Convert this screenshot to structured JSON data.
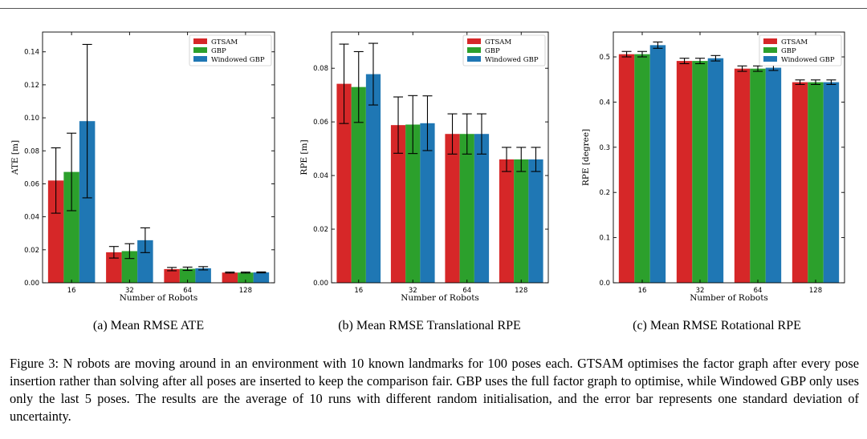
{
  "colors": {
    "GTSAM": "#d62728",
    "GBP": "#2ca02c",
    "Windowed GBP": "#1f77b4",
    "errorbar": "#000000",
    "axis": "#000000"
  },
  "chart_data": [
    {
      "type": "bar",
      "categories": [
        "16",
        "32",
        "64",
        "128"
      ],
      "series": [
        {
          "name": "GTSAM",
          "values": [
            0.062,
            0.0185,
            0.0083,
            0.0062
          ],
          "err": [
            0.0198,
            0.0035,
            0.001,
            0.0003
          ]
        },
        {
          "name": "GBP",
          "values": [
            0.0672,
            0.0192,
            0.0085,
            0.0062
          ],
          "err": [
            0.0235,
            0.0045,
            0.001,
            0.0003
          ]
        },
        {
          "name": "Windowed GBP",
          "values": [
            0.098,
            0.0258,
            0.0088,
            0.0063
          ],
          "err": [
            0.0465,
            0.0075,
            0.001,
            0.0003
          ]
        }
      ],
      "xlabel": "Number of Robots",
      "ylabel": "ATE [m]",
      "ylim": [
        0,
        0.152
      ],
      "yticks": [
        "0.00",
        "0.02",
        "0.04",
        "0.06",
        "0.08",
        "0.10",
        "0.12",
        "0.14"
      ],
      "ytick_values": [
        0,
        0.02,
        0.04,
        0.06,
        0.08,
        0.1,
        0.12,
        0.14
      ],
      "legend": "top-right",
      "grid": false
    },
    {
      "type": "bar",
      "categories": [
        "16",
        "32",
        "64",
        "128"
      ],
      "series": [
        {
          "name": "GTSAM",
          "values": [
            0.0742,
            0.0588,
            0.0555,
            0.046
          ],
          "err": [
            0.0148,
            0.0105,
            0.0075,
            0.0045
          ]
        },
        {
          "name": "GBP",
          "values": [
            0.073,
            0.059,
            0.0555,
            0.046
          ],
          "err": [
            0.0132,
            0.0108,
            0.0075,
            0.0045
          ]
        },
        {
          "name": "Windowed GBP",
          "values": [
            0.0778,
            0.0595,
            0.0555,
            0.046
          ],
          "err": [
            0.0115,
            0.0102,
            0.0075,
            0.0045
          ]
        }
      ],
      "xlabel": "Number of Robots",
      "ylabel": "RPE [m]",
      "ylim": [
        0,
        0.0935
      ],
      "yticks": [
        "0.00",
        "0.02",
        "0.04",
        "0.06",
        "0.08"
      ],
      "ytick_values": [
        0,
        0.02,
        0.04,
        0.06,
        0.08
      ],
      "legend": "top-right",
      "grid": false
    },
    {
      "type": "bar",
      "categories": [
        "16",
        "32",
        "64",
        "128"
      ],
      "series": [
        {
          "name": "GTSAM",
          "values": [
            0.506,
            0.491,
            0.474,
            0.444
          ],
          "err": [
            0.006,
            0.006,
            0.006,
            0.005
          ]
        },
        {
          "name": "GBP",
          "values": [
            0.506,
            0.491,
            0.474,
            0.444
          ],
          "err": [
            0.006,
            0.006,
            0.006,
            0.005
          ]
        },
        {
          "name": "Windowed GBP",
          "values": [
            0.526,
            0.497,
            0.476,
            0.444
          ],
          "err": [
            0.007,
            0.006,
            0.006,
            0.005
          ]
        }
      ],
      "xlabel": "Number of Robots",
      "ylabel": "RPE [degree]",
      "ylim": [
        0,
        0.555
      ],
      "yticks": [
        "0.0",
        "0.1",
        "0.2",
        "0.3",
        "0.4",
        "0.5"
      ],
      "ytick_values": [
        0,
        0.1,
        0.2,
        0.3,
        0.4,
        0.5
      ],
      "legend": "top-right",
      "grid": false
    }
  ],
  "subcaptions": [
    "(a) Mean RMSE ATE",
    "(b) Mean RMSE Translational RPE",
    "(c) Mean RMSE Rotational RPE"
  ],
  "caption": "Figure 3: N robots are moving around in an environment with 10 known landmarks for 100 poses each. GTSAM optimises the factor graph after every pose insertion rather than solving after all poses are inserted to keep the comparison fair. GBP uses the full factor graph to optimise, while Windowed GBP only uses only the last 5 poses. The results are the average of 10 runs with different random initialisation, and the error bar represents one standard deviation of uncertainty."
}
